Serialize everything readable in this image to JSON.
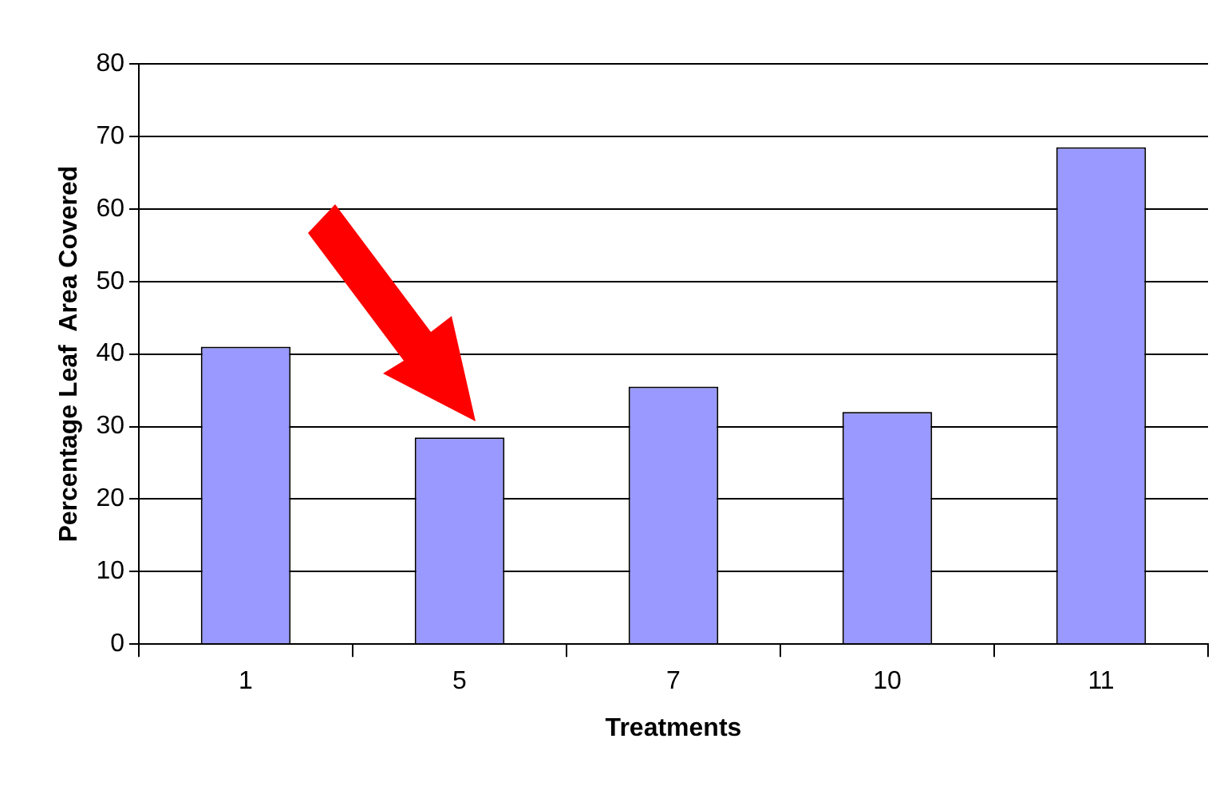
{
  "chart_data": {
    "type": "bar",
    "xlabel": "Treatments",
    "ylabel": "Percentage Leaf  Area Covered",
    "categories": [
      "1",
      "5",
      "7",
      "10",
      "11"
    ],
    "values": [
      41,
      28.5,
      35.5,
      32,
      68.5
    ],
    "color": "#9999ff",
    "ylim": [
      0,
      80
    ],
    "yticks": [
      0,
      10,
      20,
      30,
      40,
      50,
      60,
      70,
      80
    ],
    "grid": "y"
  }
}
